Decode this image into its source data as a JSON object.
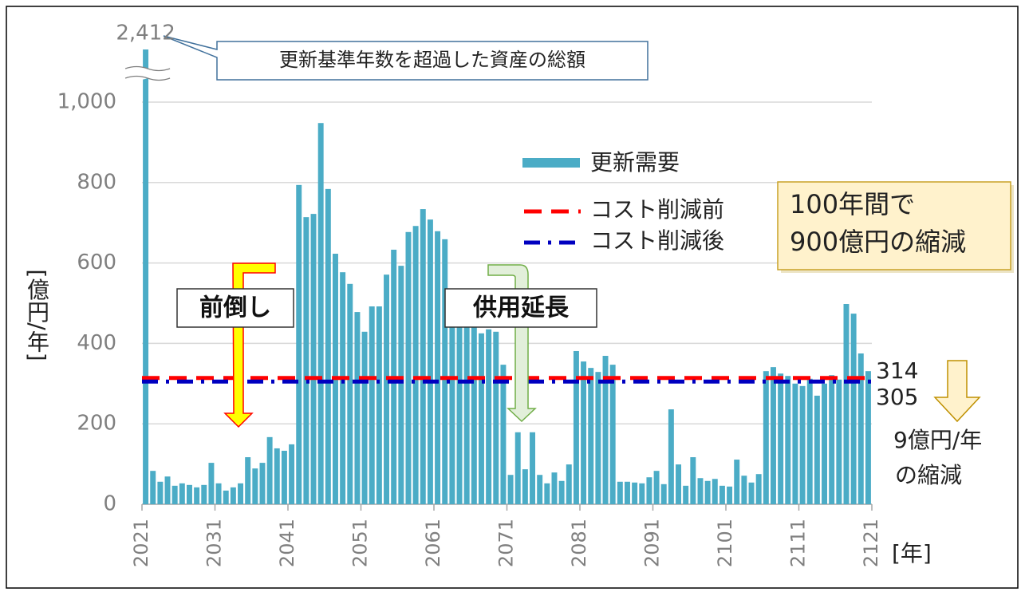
{
  "chart_data": {
    "type": "bar",
    "y_label": "[億円/年]",
    "x_label": "[年]",
    "x": [
      2021,
      2022,
      2023,
      2024,
      2025,
      2026,
      2027,
      2028,
      2029,
      2030,
      2031,
      2032,
      2033,
      2034,
      2035,
      2036,
      2037,
      2038,
      2039,
      2040,
      2041,
      2042,
      2043,
      2044,
      2045,
      2046,
      2047,
      2048,
      2049,
      2050,
      2051,
      2052,
      2053,
      2054,
      2055,
      2056,
      2057,
      2058,
      2059,
      2060,
      2061,
      2062,
      2063,
      2064,
      2065,
      2066,
      2067,
      2068,
      2069,
      2070,
      2071,
      2072,
      2073,
      2074,
      2075,
      2076,
      2077,
      2078,
      2079,
      2080,
      2081,
      2082,
      2083,
      2084,
      2085,
      2086,
      2087,
      2088,
      2089,
      2090,
      2091,
      2092,
      2093,
      2094,
      2095,
      2096,
      2097,
      2098,
      2099,
      2100,
      2101,
      2102,
      2103,
      2104,
      2105,
      2106,
      2107,
      2108,
      2109,
      2110,
      2111,
      2112,
      2113,
      2114,
      2115,
      2116,
      2117,
      2118,
      2119,
      2120
    ],
    "series": [
      {
        "name": "更新需要",
        "color": "#4bacc6",
        "values": [
          2412,
          83,
          56,
          69,
          46,
          52,
          48,
          42,
          48,
          103,
          52,
          34,
          42,
          52,
          117,
          89,
          103,
          167,
          139,
          133,
          149,
          794,
          714,
          722,
          948,
          784,
          623,
          577,
          548,
          478,
          429,
          492,
          492,
          571,
          633,
          593,
          677,
          692,
          734,
          708,
          679,
          659,
          450,
          440,
          440,
          445,
          425,
          435,
          429,
          347,
          73,
          179,
          87,
          179,
          73,
          52,
          79,
          58,
          99,
          381,
          355,
          339,
          329,
          369,
          347,
          56,
          56,
          54,
          52,
          67,
          83,
          50,
          236,
          99,
          46,
          117,
          65,
          58,
          63,
          46,
          44,
          111,
          71,
          54,
          75,
          331,
          341,
          325,
          319,
          300,
          294,
          312,
          270,
          300,
          321,
          310,
          498,
          474,
          375,
          331
        ],
        "value_labels": [
          "2,412",
          null,
          null,
          null,
          null,
          null,
          null,
          null,
          null,
          null,
          null,
          null,
          null,
          null,
          null,
          null,
          null,
          null,
          null,
          null,
          null,
          null,
          null,
          null,
          null,
          null,
          null,
          null,
          null,
          null,
          null,
          null,
          null,
          null,
          null,
          null,
          null,
          null,
          null,
          null,
          null,
          null,
          null,
          null,
          null,
          null,
          null,
          null,
          null,
          null,
          null,
          null,
          null,
          null,
          null,
          null,
          null,
          null,
          null,
          null,
          null,
          null,
          null,
          null,
          null,
          null,
          null,
          null,
          null,
          null,
          null,
          null,
          null,
          null,
          null,
          null,
          null,
          null,
          null,
          null,
          null,
          null,
          null,
          null,
          null,
          null,
          null,
          null,
          null,
          null,
          null,
          null,
          null,
          null,
          null,
          null,
          null,
          null,
          null,
          null
        ]
      }
    ],
    "lines": [
      {
        "name": "コスト削減前",
        "color": "#ff0000",
        "value": 314,
        "dash": "dashed"
      },
      {
        "name": "コスト削減後",
        "color": "#0000c0",
        "value": 305,
        "dash": "dashdot"
      }
    ],
    "xlim": [
      2021,
      2121
    ],
    "xticks": [
      2021,
      2031,
      2041,
      2051,
      2061,
      2071,
      2081,
      2091,
      2101,
      2111,
      2121
    ],
    "ylim": [
      0,
      1000
    ],
    "yticks": [
      0,
      200,
      400,
      600,
      {
        "value": 800,
        "label": "800"
      },
      {
        "value": 1000,
        "label": "1,000"
      }
    ],
    "grid": true,
    "annotations": {
      "callout": "更新基準年数を超過した資産の総額",
      "advance": "前倒し",
      "extend": "供用延長",
      "summary": [
        "100年間で",
        "900億円の縮減"
      ],
      "per_year": [
        "9億円/年",
        "の縮減"
      ]
    }
  }
}
